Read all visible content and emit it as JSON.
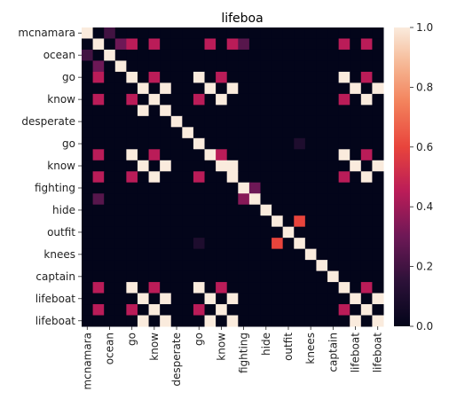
{
  "chart_data": {
    "type": "heatmap",
    "title": "lifeboa",
    "row_labels": [
      "mcnamara",
      "",
      "ocean",
      "",
      "go",
      "",
      "know",
      "",
      "desperate",
      "",
      "go",
      "",
      "know",
      "",
      "fighting",
      "",
      "hide",
      "",
      "outfit",
      "",
      "knees",
      "",
      "captain",
      "",
      "lifeboat",
      "",
      "lifeboat"
    ],
    "col_labels": [
      "mcnamara",
      "",
      "ocean",
      "",
      "go",
      "",
      "know",
      "",
      "desperate",
      "",
      "go",
      "",
      "know",
      "",
      "fighting",
      "",
      "hide",
      "",
      "outfit",
      "",
      "knees",
      "",
      "captain",
      "",
      "lifeboat",
      "",
      "lifeboat"
    ],
    "values": [
      [
        1,
        0,
        0.2,
        0,
        0,
        0,
        0,
        0,
        0,
        0,
        0,
        0,
        0,
        0,
        0,
        0,
        0,
        0,
        0,
        0,
        0,
        0,
        0,
        0,
        0,
        0,
        0
      ],
      [
        0,
        1,
        0,
        0.3,
        0.45,
        0,
        0.45,
        0,
        0,
        0,
        0,
        0.45,
        0,
        0.45,
        0.25,
        0,
        0,
        0,
        0,
        0,
        0,
        0,
        0,
        0.45,
        0,
        0.45,
        0
      ],
      [
        0.2,
        0,
        1,
        0,
        0,
        0,
        0,
        0,
        0,
        0,
        0,
        0,
        0,
        0,
        0,
        0,
        0,
        0,
        0,
        0,
        0,
        0,
        0,
        0,
        0,
        0,
        0
      ],
      [
        0,
        0.3,
        0,
        1,
        0,
        0,
        0,
        0,
        0,
        0,
        0,
        0,
        0,
        0,
        0,
        0,
        0,
        0,
        0,
        0,
        0,
        0,
        0,
        0,
        0,
        0,
        0
      ],
      [
        0,
        0.45,
        0,
        0,
        1,
        0,
        0.45,
        0,
        0,
        0,
        1,
        0,
        0.45,
        0,
        0,
        0,
        0,
        0,
        0,
        0,
        0,
        0,
        0,
        1,
        0,
        0.45,
        0
      ],
      [
        0,
        0,
        0,
        0,
        0,
        1,
        0,
        1,
        0,
        0,
        0,
        1,
        0,
        1,
        0,
        0,
        0,
        0,
        0,
        0,
        0,
        0,
        0,
        0,
        1,
        0,
        1
      ],
      [
        0,
        0.45,
        0,
        0,
        0.45,
        0,
        1,
        0,
        0,
        0,
        0.45,
        0,
        1,
        0,
        0,
        0,
        0,
        0,
        0,
        0,
        0,
        0,
        0,
        0.45,
        0,
        1,
        0
      ],
      [
        0,
        0,
        0,
        0,
        0,
        1,
        0,
        1,
        0,
        0,
        0,
        0,
        0,
        0,
        0,
        0,
        0,
        0,
        0,
        0,
        0,
        0,
        0,
        0,
        0,
        0,
        0
      ],
      [
        0,
        0,
        0,
        0,
        0,
        0,
        0,
        0,
        1,
        0,
        0,
        0,
        0,
        0,
        0,
        0,
        0,
        0,
        0,
        0,
        0,
        0,
        0,
        0,
        0,
        0,
        0
      ],
      [
        0,
        0,
        0,
        0,
        0,
        0,
        0,
        0,
        0,
        1,
        0,
        0,
        0,
        0,
        0,
        0,
        0,
        0,
        0,
        0,
        0,
        0,
        0,
        0,
        0,
        0,
        0
      ],
      [
        0,
        0,
        0,
        0,
        0,
        0,
        0,
        0,
        0,
        0,
        1,
        0,
        0,
        0,
        0,
        0,
        0,
        0,
        0,
        0.1,
        0,
        0,
        0,
        0,
        0,
        0,
        0
      ],
      [
        0,
        0.45,
        0,
        0,
        1,
        0,
        0.45,
        0,
        0,
        0,
        0,
        1,
        0.45,
        0,
        0,
        0,
        0,
        0,
        0,
        0,
        0,
        0,
        0,
        1,
        0,
        0.45,
        0
      ],
      [
        0,
        0,
        0,
        0,
        0,
        1,
        0,
        1,
        0,
        0,
        0,
        0,
        1,
        1,
        0,
        0,
        0,
        0,
        0,
        0,
        0,
        0,
        0,
        0,
        1,
        0,
        1
      ],
      [
        0,
        0.45,
        0,
        0,
        0.45,
        0,
        1,
        0,
        0,
        0,
        0.45,
        0,
        0,
        1,
        0,
        0,
        0,
        0,
        0,
        0,
        0,
        0,
        0,
        0.45,
        0,
        1,
        0
      ],
      [
        0,
        0,
        0,
        0,
        0,
        0,
        0,
        0,
        0,
        0,
        0,
        0,
        0,
        0,
        1,
        0.3,
        0,
        0,
        0,
        0,
        0,
        0,
        0,
        0,
        0,
        0,
        0
      ],
      [
        0,
        0.25,
        0,
        0,
        0,
        0,
        0,
        0,
        0,
        0,
        0,
        0,
        0,
        0,
        0.35,
        1,
        0,
        0,
        0,
        0,
        0,
        0,
        0,
        0,
        0,
        0,
        0
      ],
      [
        0,
        0,
        0,
        0,
        0,
        0,
        0,
        0,
        0,
        0,
        0,
        0,
        0,
        0,
        0,
        0,
        1,
        0,
        0,
        0,
        0,
        0,
        0,
        0,
        0,
        0,
        0
      ],
      [
        0,
        0,
        0,
        0,
        0,
        0,
        0,
        0,
        0,
        0,
        0,
        0,
        0,
        0,
        0,
        0,
        0,
        1,
        0,
        0.6,
        0,
        0,
        0,
        0,
        0,
        0,
        0
      ],
      [
        0,
        0,
        0,
        0,
        0,
        0,
        0,
        0,
        0,
        0,
        0,
        0,
        0,
        0,
        0,
        0,
        0,
        0,
        1,
        0,
        0,
        0,
        0,
        0,
        0,
        0,
        0
      ],
      [
        0,
        0,
        0,
        0,
        0,
        0,
        0,
        0,
        0,
        0,
        0.1,
        0,
        0,
        0,
        0,
        0,
        0,
        0.6,
        0,
        1,
        0,
        0,
        0,
        0,
        0,
        0,
        0
      ],
      [
        0,
        0,
        0,
        0,
        0,
        0,
        0,
        0,
        0,
        0,
        0,
        0,
        0,
        0,
        0,
        0,
        0,
        0,
        0,
        0,
        1,
        0,
        0,
        0,
        0,
        0,
        0
      ],
      [
        0,
        0,
        0,
        0,
        0,
        0,
        0,
        0,
        0,
        0,
        0,
        0,
        0,
        0,
        0,
        0,
        0,
        0,
        0,
        0,
        0,
        1,
        0,
        0,
        0,
        0,
        0
      ],
      [
        0,
        0,
        0,
        0,
        0,
        0,
        0,
        0,
        0,
        0,
        0,
        0,
        0,
        0,
        0,
        0,
        0,
        0,
        0,
        0,
        0,
        0,
        1,
        0,
        0,
        0,
        0
      ],
      [
        0,
        0.45,
        0,
        0,
        1,
        0,
        0.45,
        0,
        0,
        0,
        1,
        0,
        0.45,
        0,
        0,
        0,
        0,
        0,
        0,
        0,
        0,
        0,
        0,
        1,
        0,
        0.45,
        0
      ],
      [
        0,
        0,
        0,
        0,
        0,
        1,
        0,
        1,
        0,
        0,
        0,
        1,
        0,
        1,
        0,
        0,
        0,
        0,
        0,
        0,
        0,
        0,
        0,
        0,
        1,
        0,
        1
      ],
      [
        0,
        0.45,
        0,
        0,
        0.45,
        0,
        1,
        0,
        0,
        0,
        0.45,
        0,
        1,
        0,
        0,
        0,
        0,
        0,
        0,
        0,
        0,
        0,
        0,
        0.45,
        0,
        1,
        0
      ],
      [
        0,
        0,
        0,
        0,
        0,
        1,
        0,
        1,
        0,
        0,
        0,
        1,
        0,
        1,
        0,
        0,
        0,
        0,
        0,
        0,
        0,
        0,
        0,
        0,
        1,
        0,
        1
      ]
    ],
    "colorbar": {
      "min": 0,
      "max": 1,
      "ticks": [
        "0.0",
        "0.2",
        "0.4",
        "0.6",
        "0.8",
        "1.0"
      ]
    },
    "colormap": "rocket"
  }
}
